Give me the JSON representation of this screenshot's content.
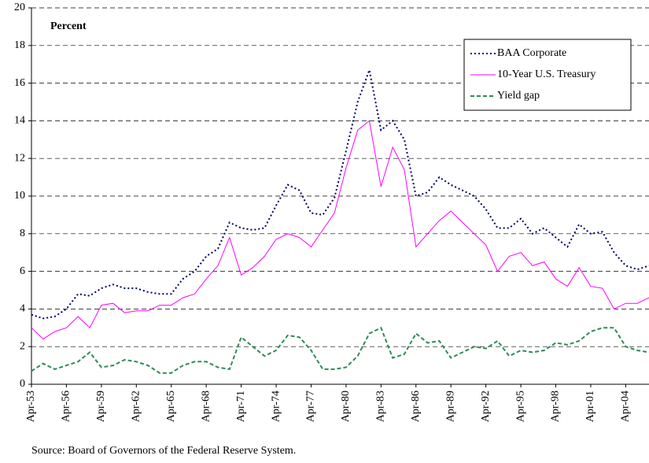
{
  "chart_data": {
    "type": "line",
    "y_label": "Percent",
    "source": "Source: Board of Governors of the Federal Reserve System.",
    "categories": [
      "Apr-53",
      null,
      null,
      "Apr-56",
      null,
      null,
      "Apr-59",
      null,
      null,
      "Apr-62",
      null,
      null,
      "Apr-65",
      null,
      null,
      "Apr-68",
      null,
      null,
      "Apr-71",
      null,
      null,
      "Apr-74",
      null,
      null,
      "Apr-77",
      null,
      null,
      "Apr-80",
      null,
      null,
      "Apr-83",
      null,
      null,
      "Apr-86",
      null,
      null,
      "Apr-89",
      null,
      null,
      "Apr-92",
      null,
      null,
      "Apr-95",
      null,
      null,
      "Apr-98",
      null,
      null,
      "Apr-01",
      null,
      null,
      "Apr-04",
      null,
      null
    ],
    "series": [
      {
        "name": "BAA Corporate",
        "color": "#000066",
        "dash": "dotted",
        "values": [
          3.7,
          3.5,
          3.6,
          4.0,
          4.8,
          4.7,
          5.1,
          5.3,
          5.1,
          5.1,
          4.9,
          4.8,
          4.8,
          5.6,
          6.0,
          6.8,
          7.2,
          8.6,
          8.3,
          8.2,
          8.3,
          9.5,
          10.6,
          10.3,
          9.1,
          9.0,
          9.9,
          12.4,
          15.0,
          16.7,
          13.5,
          14.0,
          13.0,
          10.0,
          10.2,
          11.0,
          10.6,
          10.3,
          10.0,
          9.3,
          8.3,
          8.3,
          8.8,
          8.0,
          8.3,
          7.8,
          7.3,
          8.5,
          8.0,
          8.1,
          7.0,
          6.3,
          6.1,
          6.3
        ]
      },
      {
        "name": "10-Year U.S. Treasury",
        "color": "#ff00ff",
        "dash": "solid",
        "values": [
          3.0,
          2.4,
          2.8,
          3.0,
          3.6,
          3.0,
          4.2,
          4.3,
          3.8,
          3.9,
          3.9,
          4.2,
          4.2,
          4.6,
          4.8,
          5.6,
          6.3,
          7.8,
          5.8,
          6.2,
          6.8,
          7.7,
          8.0,
          7.8,
          7.3,
          8.2,
          9.1,
          11.5,
          13.5,
          14.0,
          10.5,
          12.6,
          11.4,
          7.3,
          8.0,
          8.7,
          9.2,
          8.6,
          8.0,
          7.4,
          6.0,
          6.8,
          7.0,
          6.3,
          6.5,
          5.6,
          5.2,
          6.2,
          5.2,
          5.1,
          4.0,
          4.3,
          4.3,
          4.6
        ]
      },
      {
        "name": "Yield gap",
        "color": "#2e8b57",
        "dash": "dashed",
        "values": [
          0.7,
          1.1,
          0.8,
          1.0,
          1.2,
          1.7,
          0.9,
          1.0,
          1.3,
          1.2,
          1.0,
          0.6,
          0.6,
          1.0,
          1.2,
          1.2,
          0.9,
          0.8,
          2.5,
          2.0,
          1.5,
          1.8,
          2.6,
          2.5,
          1.8,
          0.8,
          0.8,
          0.9,
          1.5,
          2.7,
          3.0,
          1.4,
          1.6,
          2.7,
          2.2,
          2.3,
          1.4,
          1.7,
          2.0,
          1.9,
          2.3,
          1.5,
          1.8,
          1.7,
          1.8,
          2.2,
          2.1,
          2.3,
          2.8,
          3.0,
          3.0,
          2.0,
          1.8,
          1.7
        ]
      }
    ],
    "ylim": [
      0,
      20
    ],
    "yticks": [
      0,
      2,
      4,
      6,
      8,
      10,
      12,
      14,
      16,
      18,
      20
    ],
    "grid": true
  }
}
